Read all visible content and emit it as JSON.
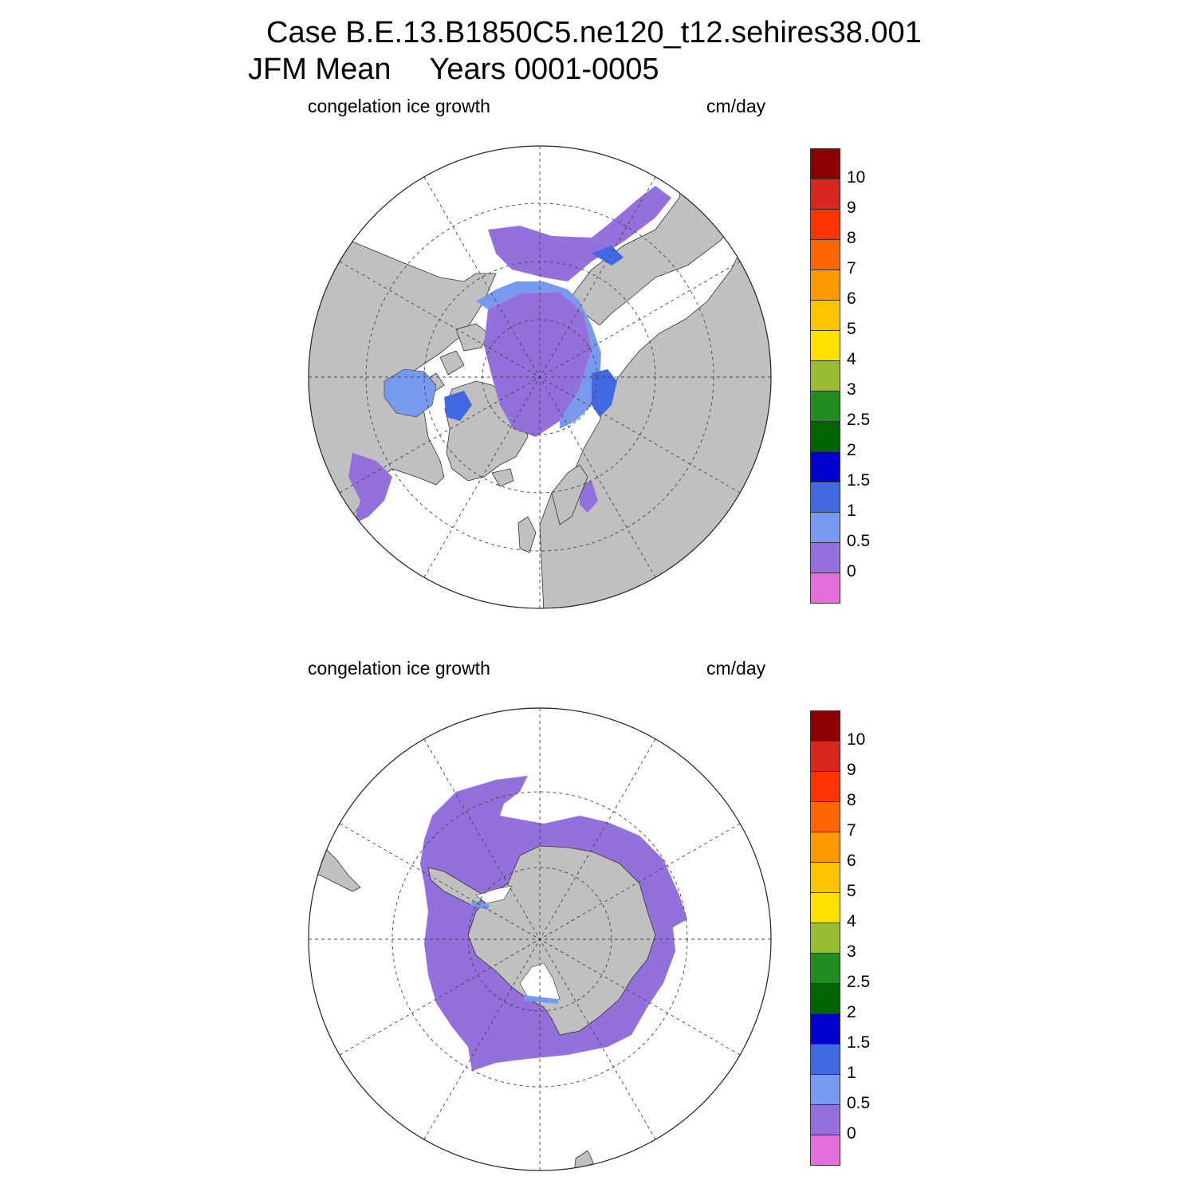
{
  "header": {
    "case_line": "Case B.E.13.B1850C5.ne120_t12.sehires38.001",
    "season": "JFM Mean",
    "years": "Years 0001-0005"
  },
  "panels": [
    {
      "hemisphere": "north",
      "variable": "congelation ice growth",
      "units": "cm/day"
    },
    {
      "hemisphere": "south",
      "variable": "congelation ice growth",
      "units": "cm/day"
    }
  ],
  "colorbar": {
    "labels": [
      "10",
      "9",
      "8",
      "7",
      "6",
      "5",
      "4",
      "3",
      "2.5",
      "2",
      "1.5",
      "1",
      "0.5",
      "0"
    ],
    "colors": [
      "#8b0000",
      "#d7261e",
      "#ff3300",
      "#ff6600",
      "#ff9900",
      "#ffc300",
      "#ffe000",
      "#9abc32",
      "#228b22",
      "#006400",
      "#0000cd",
      "#4169e1",
      "#7799ee",
      "#9370db",
      "#e36fdb"
    ]
  },
  "map_colors": {
    "land": "#c0c0c0",
    "ocean": "#ffffff",
    "ice_0_05": "#9370db",
    "ice_05_1": "#7799ee",
    "ice_1_15": "#4169e1",
    "ice_15_2": "#0000cd"
  }
}
